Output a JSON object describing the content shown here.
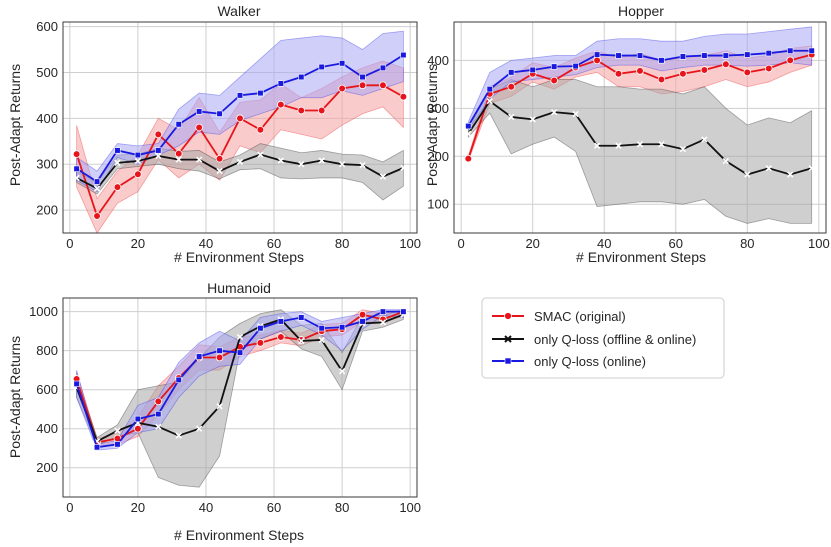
{
  "chart_data": [
    {
      "type": "line",
      "title": "Walker",
      "xlabel": "# Environment Steps",
      "ylabel": "Post-Adapt Returns",
      "xlim": [
        -2,
        102
      ],
      "ylim": [
        150,
        610
      ],
      "xticks": [
        0,
        20,
        40,
        60,
        80,
        100
      ],
      "yticks": [
        200,
        300,
        400,
        500,
        600
      ],
      "grid": true,
      "x": [
        2,
        8,
        14,
        20,
        26,
        32,
        38,
        44,
        50,
        56,
        62,
        68,
        74,
        80,
        86,
        92,
        98
      ],
      "series": [
        {
          "name": "SMAC (original)",
          "values": [
            322,
            187,
            250,
            278,
            365,
            323,
            380,
            312,
            400,
            375,
            430,
            417,
            417,
            465,
            472,
            472,
            447
          ],
          "lower": [
            250,
            150,
            215,
            240,
            310,
            270,
            300,
            265,
            340,
            325,
            375,
            365,
            355,
            385,
            410,
            425,
            380
          ],
          "upper": [
            385,
            225,
            285,
            320,
            400,
            375,
            445,
            370,
            435,
            440,
            475,
            445,
            465,
            490,
            510,
            525,
            510
          ]
        },
        {
          "name": "only Q-loss (offline & online)",
          "values": [
            270,
            247,
            303,
            307,
            318,
            310,
            310,
            285,
            305,
            321,
            308,
            300,
            308,
            300,
            298,
            273,
            292
          ],
          "lower": [
            260,
            235,
            290,
            295,
            300,
            290,
            285,
            268,
            288,
            290,
            270,
            268,
            270,
            270,
            260,
            222,
            252
          ],
          "upper": [
            285,
            260,
            320,
            322,
            335,
            328,
            330,
            305,
            320,
            345,
            335,
            325,
            330,
            322,
            320,
            305,
            330
          ]
        },
        {
          "name": "only Q-loss (online)",
          "values": [
            290,
            262,
            330,
            320,
            330,
            387,
            415,
            410,
            450,
            455,
            476,
            490,
            512,
            520,
            490,
            510,
            538
          ],
          "lower": [
            265,
            240,
            315,
            300,
            320,
            340,
            370,
            365,
            395,
            410,
            425,
            445,
            445,
            460,
            450,
            465,
            480
          ],
          "upper": [
            315,
            285,
            345,
            340,
            345,
            420,
            455,
            450,
            490,
            530,
            570,
            575,
            580,
            575,
            550,
            585,
            590
          ]
        }
      ],
      "colors": [
        "#e8141b",
        "#111111",
        "#1919e0"
      ]
    },
    {
      "type": "line",
      "title": "Hopper",
      "xlabel": "# Environment Steps",
      "ylabel": "Post-Adapt Returns",
      "xlim": [
        -2,
        102
      ],
      "ylim": [
        40,
        480
      ],
      "xticks": [
        0,
        20,
        40,
        60,
        80,
        100
      ],
      "yticks": [
        100,
        200,
        300,
        400
      ],
      "grid": true,
      "x": [
        2,
        8,
        14,
        20,
        26,
        32,
        38,
        44,
        50,
        56,
        62,
        68,
        74,
        80,
        86,
        92,
        98
      ],
      "series": [
        {
          "name": "SMAC (original)",
          "values": [
            195,
            330,
            345,
            372,
            358,
            385,
            400,
            372,
            378,
            360,
            372,
            380,
            392,
            375,
            383,
            400,
            412
          ],
          "lower": [
            190,
            310,
            325,
            355,
            340,
            365,
            375,
            345,
            345,
            330,
            335,
            345,
            360,
            345,
            355,
            375,
            390
          ],
          "upper": [
            200,
            345,
            365,
            395,
            385,
            405,
            420,
            405,
            415,
            400,
            405,
            410,
            420,
            405,
            410,
            425,
            430
          ]
        },
        {
          "name": "only Q-loss (offline & online)",
          "values": [
            247,
            315,
            282,
            277,
            292,
            288,
            222,
            222,
            225,
            225,
            215,
            235,
            190,
            162,
            175,
            162,
            175
          ],
          "lower": [
            240,
            290,
            205,
            225,
            240,
            210,
            95,
            100,
            105,
            105,
            100,
            110,
            75,
            60,
            70,
            60,
            60
          ],
          "upper": [
            255,
            340,
            360,
            345,
            360,
            360,
            345,
            345,
            340,
            340,
            330,
            345,
            300,
            265,
            280,
            270,
            295
          ]
        },
        {
          "name": "only Q-loss (online)",
          "values": [
            263,
            340,
            375,
            380,
            387,
            388,
            412,
            410,
            410,
            400,
            408,
            410,
            410,
            412,
            415,
            420,
            420
          ],
          "lower": [
            255,
            320,
            355,
            360,
            365,
            370,
            385,
            390,
            390,
            378,
            385,
            390,
            390,
            388,
            390,
            395,
            390
          ],
          "upper": [
            272,
            375,
            400,
            405,
            410,
            410,
            440,
            445,
            445,
            440,
            440,
            450,
            455,
            455,
            460,
            465,
            470
          ]
        }
      ],
      "colors": [
        "#e8141b",
        "#111111",
        "#1919e0"
      ]
    },
    {
      "type": "line",
      "title": "Humanoid",
      "xlabel": "# Environment Steps",
      "ylabel": "Post-Adapt Returns",
      "xlim": [
        -2,
        102
      ],
      "ylim": [
        50,
        1070
      ],
      "xticks": [
        0,
        20,
        40,
        60,
        80,
        100
      ],
      "yticks": [
        200,
        400,
        600,
        800,
        1000
      ],
      "grid": true,
      "x": [
        2,
        8,
        14,
        20,
        26,
        32,
        38,
        44,
        50,
        56,
        62,
        68,
        74,
        80,
        86,
        92,
        98
      ],
      "series": [
        {
          "name": "SMAC (original)",
          "values": [
            655,
            330,
            350,
            400,
            540,
            660,
            765,
            765,
            820,
            840,
            870,
            855,
            900,
            910,
            985,
            960,
            1000
          ],
          "lower": [
            620,
            310,
            320,
            360,
            470,
            600,
            700,
            700,
            770,
            800,
            840,
            825,
            870,
            880,
            950,
            940,
            980
          ],
          "upper": [
            690,
            350,
            380,
            460,
            620,
            720,
            830,
            820,
            870,
            880,
            905,
            890,
            935,
            940,
            1010,
            990,
            1010
          ]
        },
        {
          "name": "only Q-loss (offline & online)",
          "values": [
            610,
            335,
            390,
            430,
            410,
            365,
            400,
            515,
            870,
            925,
            960,
            850,
            855,
            695,
            940,
            945,
            985
          ],
          "lower": [
            560,
            315,
            360,
            380,
            150,
            110,
            100,
            260,
            800,
            860,
            900,
            810,
            770,
            600,
            900,
            920,
            960
          ],
          "upper": [
            660,
            355,
            420,
            600,
            620,
            640,
            760,
            870,
            940,
            990,
            1010,
            930,
            940,
            790,
            980,
            980,
            1010
          ]
        },
        {
          "name": "only Q-loss (online)",
          "values": [
            630,
            305,
            320,
            450,
            475,
            650,
            770,
            800,
            790,
            915,
            950,
            970,
            915,
            920,
            950,
            1000,
            1000
          ],
          "lower": [
            560,
            290,
            300,
            380,
            400,
            560,
            670,
            720,
            730,
            860,
            900,
            930,
            880,
            800,
            910,
            980,
            970
          ],
          "upper": [
            700,
            320,
            340,
            520,
            560,
            740,
            840,
            900,
            850,
            970,
            990,
            1000,
            950,
            970,
            990,
            1010,
            1010
          ]
        }
      ],
      "colors": [
        "#e8141b",
        "#111111",
        "#1919e0"
      ]
    }
  ],
  "legend": {
    "entries": [
      "SMAC (original)",
      "only Q-loss (offline & online)",
      "only Q-loss (online)"
    ],
    "colors": [
      "#e8141b",
      "#111111",
      "#1919e0"
    ],
    "markers": [
      "circle",
      "x",
      "square"
    ]
  }
}
